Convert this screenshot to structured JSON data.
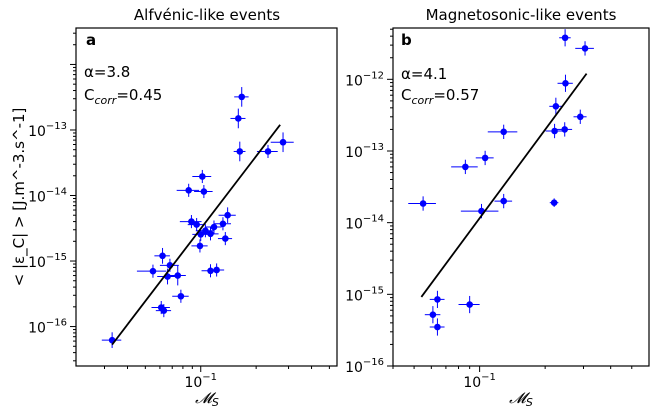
{
  "chart_data": [
    {
      "type": "scatter",
      "panel_label": "a",
      "title": "Alfvénic-like events",
      "xlabel": "𝓜",
      "xlabel_sub": "S",
      "ylabel": "< |ε_C| > [J.m^-3.s^-1]",
      "xscale": "log",
      "yscale": "log",
      "xlim": [
        0.021,
        0.55
      ],
      "ylim": [
        2.5e-17,
        3.6e-12
      ],
      "x_ticks": [
        {
          "value": 0.1,
          "base": "10",
          "exp": "−1"
        }
      ],
      "y_ticks": [
        {
          "value": 1e-16,
          "base": "10",
          "exp": "−16"
        },
        {
          "value": 1e-15,
          "base": "10",
          "exp": "−15"
        },
        {
          "value": 1e-14,
          "base": "10",
          "exp": "−14"
        },
        {
          "value": 1e-13,
          "base": "10",
          "exp": "−13"
        }
      ],
      "annotation": {
        "alpha": "α=3.8",
        "ccorr_prefix": "C",
        "ccorr_sub": "corr",
        "ccorr_value": "=0.45"
      },
      "fit_line": {
        "x": [
          0.033,
          0.27
        ],
        "y": [
          5.3e-17,
          1.2e-13
        ]
      },
      "point_color": "#0000ff",
      "points": [
        {
          "x": 0.033,
          "y": 6.2e-17,
          "xerr": 0.004,
          "yerr": 0.12
        },
        {
          "x": 0.061,
          "y": 1.95e-16,
          "xerr": 0.007,
          "yerr": 0.1
        },
        {
          "x": 0.063,
          "y": 1.75e-16,
          "xerr": 0.006,
          "yerr": 0.1
        },
        {
          "x": 0.078,
          "y": 2.9e-16,
          "xerr": 0.008,
          "yerr": 0.1
        },
        {
          "x": 0.066,
          "y": 5.8e-16,
          "xerr": 0.008,
          "yerr": 0.12
        },
        {
          "x": 0.075,
          "y": 6e-16,
          "xerr": 0.008,
          "yerr": 0.15
        },
        {
          "x": 0.055,
          "y": 7e-16,
          "xerr": 0.01,
          "yerr": 0.1
        },
        {
          "x": 0.062,
          "y": 1.2e-15,
          "xerr": 0.006,
          "yerr": 0.12
        },
        {
          "x": 0.068,
          "y": 8.6e-16,
          "xerr": 0.008,
          "yerr": 0.1
        },
        {
          "x": 0.113,
          "y": 7.1e-16,
          "xerr": 0.012,
          "yerr": 0.1
        },
        {
          "x": 0.122,
          "y": 7.3e-16,
          "xerr": 0.012,
          "yerr": 0.1
        },
        {
          "x": 0.099,
          "y": 1.7e-15,
          "xerr": 0.01,
          "yerr": 0.1
        },
        {
          "x": 0.1,
          "y": 2.55e-15,
          "xerr": 0.01,
          "yerr": 0.1
        },
        {
          "x": 0.089,
          "y": 4e-15,
          "xerr": 0.012,
          "yerr": 0.1
        },
        {
          "x": 0.095,
          "y": 3.6e-15,
          "xerr": 0.01,
          "yerr": 0.1
        },
        {
          "x": 0.106,
          "y": 2.9e-15,
          "xerr": 0.012,
          "yerr": 0.1
        },
        {
          "x": 0.113,
          "y": 2.6e-15,
          "xerr": 0.012,
          "yerr": 0.1
        },
        {
          "x": 0.118,
          "y": 3.3e-15,
          "xerr": 0.012,
          "yerr": 0.1
        },
        {
          "x": 0.132,
          "y": 3.7e-15,
          "xerr": 0.014,
          "yerr": 0.1
        },
        {
          "x": 0.14,
          "y": 5e-15,
          "xerr": 0.015,
          "yerr": 0.12
        },
        {
          "x": 0.136,
          "y": 2.2e-15,
          "xerr": 0.012,
          "yerr": 0.1
        },
        {
          "x": 0.086,
          "y": 1.2e-14,
          "xerr": 0.012,
          "yerr": 0.1
        },
        {
          "x": 0.104,
          "y": 1.15e-14,
          "xerr": 0.012,
          "yerr": 0.1
        },
        {
          "x": 0.102,
          "y": 1.95e-14,
          "xerr": 0.012,
          "yerr": 0.1
        },
        {
          "x": 0.163,
          "y": 4.7e-14,
          "xerr": 0.012,
          "yerr": 0.15
        },
        {
          "x": 0.232,
          "y": 4.7e-14,
          "xerr": 0.03,
          "yerr": 0.1
        },
        {
          "x": 0.28,
          "y": 6.5e-14,
          "xerr": 0.04,
          "yerr": 0.15
        },
        {
          "x": 0.16,
          "y": 1.5e-13,
          "xerr": 0.015,
          "yerr": 0.15
        },
        {
          "x": 0.167,
          "y": 3.2e-13,
          "xerr": 0.015,
          "yerr": 0.15
        }
      ]
    },
    {
      "type": "scatter",
      "panel_label": "b",
      "title": "Magnetosonic-like events",
      "xlabel": "𝓜",
      "xlabel_sub": "S",
      "xscale": "log",
      "yscale": "log",
      "xlim": [
        0.04,
        0.6
      ],
      "ylim": [
        1e-16,
        5.2e-12
      ],
      "x_ticks": [
        {
          "value": 0.1,
          "base": "10",
          "exp": "−1"
        }
      ],
      "y_ticks": [
        {
          "value": 1e-16,
          "base": "10",
          "exp": "−16"
        },
        {
          "value": 1e-15,
          "base": "10",
          "exp": "−15"
        },
        {
          "value": 1e-14,
          "base": "10",
          "exp": "−14"
        },
        {
          "value": 1e-13,
          "base": "10",
          "exp": "−13"
        },
        {
          "value": 1e-12,
          "base": "10",
          "exp": "−12"
        }
      ],
      "annotation": {
        "alpha": "α=4.1",
        "ccorr_prefix": "C",
        "ccorr_sub": "corr",
        "ccorr_value": "=0.57"
      },
      "fit_line": {
        "x": [
          0.054,
          0.31
        ],
        "y": [
          9.2e-16,
          1.2e-12
        ]
      },
      "point_color": "#0000ff",
      "points": [
        {
          "x": 0.061,
          "y": 5.2e-16,
          "xerr": 0.005,
          "yerr": 0.12
        },
        {
          "x": 0.064,
          "y": 3.5e-16,
          "xerr": 0.005,
          "yerr": 0.12
        },
        {
          "x": 0.064,
          "y": 8.5e-16,
          "xerr": 0.005,
          "yerr": 0.12
        },
        {
          "x": 0.09,
          "y": 7.2e-16,
          "xerr": 0.01,
          "yerr": 0.12
        },
        {
          "x": 0.055,
          "y": 1.85e-14,
          "xerr": 0.008,
          "yerr": 0.1
        },
        {
          "x": 0.102,
          "y": 1.45e-14,
          "xerr": 0.02,
          "yerr": 0.1
        },
        {
          "x": 0.129,
          "y": 2e-14,
          "xerr": 0.012,
          "yerr": 0.1
        },
        {
          "x": 0.086,
          "y": 6e-14,
          "xerr": 0.012,
          "yerr": 0.1
        },
        {
          "x": 0.106,
          "y": 8e-14,
          "xerr": 0.01,
          "yerr": 0.1
        },
        {
          "x": 0.129,
          "y": 1.85e-13,
          "xerr": 0.02,
          "yerr": 0.1
        },
        {
          "x": 0.22,
          "y": 1.9e-14,
          "xerr": 0.01,
          "yerr": 0.06
        },
        {
          "x": 0.221,
          "y": 1.9e-13,
          "xerr": 0.02,
          "yerr": 0.1
        },
        {
          "x": 0.246,
          "y": 2e-13,
          "xerr": 0.02,
          "yerr": 0.1
        },
        {
          "x": 0.29,
          "y": 3e-13,
          "xerr": 0.02,
          "yerr": 0.1
        },
        {
          "x": 0.224,
          "y": 4.2e-13,
          "xerr": 0.015,
          "yerr": 0.12
        },
        {
          "x": 0.248,
          "y": 8.8e-13,
          "xerr": 0.02,
          "yerr": 0.12
        },
        {
          "x": 0.247,
          "y": 3.8e-12,
          "xerr": 0.015,
          "yerr": 0.12
        },
        {
          "x": 0.305,
          "y": 2.7e-12,
          "xerr": 0.03,
          "yerr": 0.1
        }
      ]
    }
  ]
}
